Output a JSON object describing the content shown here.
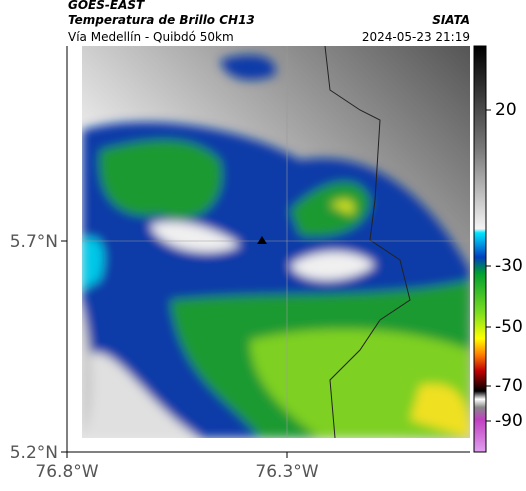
{
  "header": {
    "satellite": "GOES-EAST",
    "title": "Temperatura de Brillo CH13",
    "source": "SIATA",
    "route": "Vía Medellín - Quibdó 50km",
    "datetime": "2024-05-23 21:19"
  },
  "map": {
    "lat_ticks": [
      "5.7°N",
      "5.2°N"
    ],
    "lon_ticks": [
      "76.8°W",
      "76.3°W"
    ]
  },
  "colorbar": {
    "ticks": [
      20,
      -30,
      -50,
      -70,
      -90
    ]
  }
}
